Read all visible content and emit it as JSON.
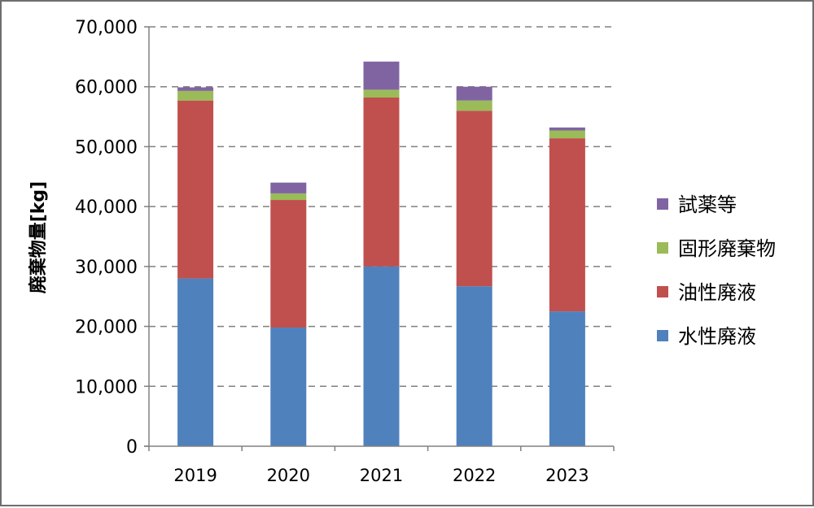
{
  "chart_data": {
    "type": "bar",
    "stacked": true,
    "title": "",
    "xlabel": "",
    "ylabel": "廃棄物量[kg]",
    "ylim": [
      0,
      70000
    ],
    "y_ticks": [
      "0",
      "10,000",
      "20,000",
      "30,000",
      "40,000",
      "50,000",
      "60,000",
      "70,000"
    ],
    "y_tick_values": [
      0,
      10000,
      20000,
      30000,
      40000,
      50000,
      60000,
      70000
    ],
    "grid": "horizontal dashed",
    "legend_position": "right",
    "categories": [
      "2019",
      "2020",
      "2021",
      "2022",
      "2023"
    ],
    "series": [
      {
        "name": "水性廃液",
        "color": "#4f81bd",
        "values": [
          28000,
          19800,
          30000,
          26700,
          22500
        ]
      },
      {
        "name": "油性廃液",
        "color": "#c0504d",
        "values": [
          29700,
          21300,
          28200,
          29300,
          28900
        ]
      },
      {
        "name": "固形廃棄物",
        "color": "#9bbb59",
        "values": [
          1600,
          1100,
          1300,
          1700,
          1300
        ]
      },
      {
        "name": "試薬等",
        "color": "#8064a2",
        "values": [
          600,
          1800,
          4700,
          2300,
          500
        ]
      }
    ],
    "legend_order": [
      "試薬等",
      "固形廃棄物",
      "油性廃液",
      "水性廃液"
    ]
  }
}
